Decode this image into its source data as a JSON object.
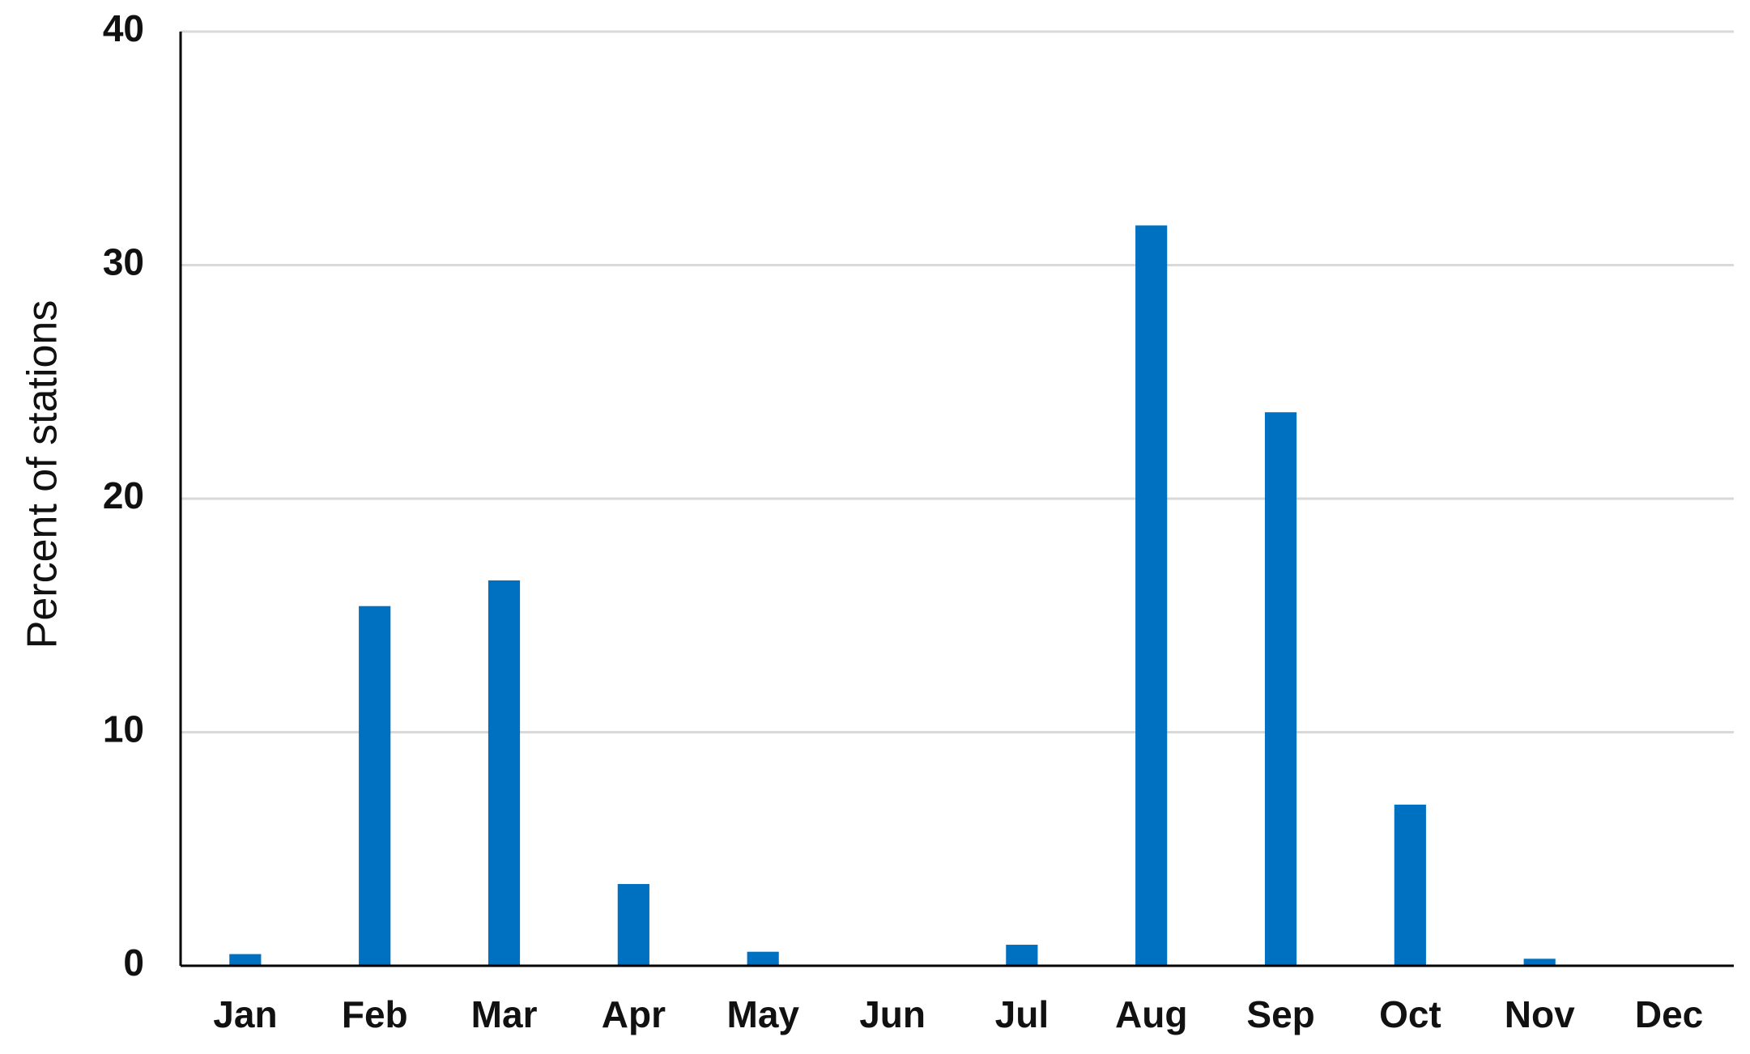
{
  "chart_data": {
    "type": "bar",
    "y_label": "Percent of  stations",
    "categories": [
      "Jan",
      "Feb",
      "Mar",
      "Apr",
      "May",
      "Jun",
      "Jul",
      "Aug",
      "Sep",
      "Oct",
      "Nov",
      "Dec"
    ],
    "values": [
      0.5,
      15.4,
      16.5,
      3.5,
      0.6,
      0,
      0.9,
      31.7,
      23.7,
      6.9,
      0.3,
      0
    ],
    "color": "#0070c0",
    "ylim": [
      0,
      40
    ],
    "yticks": [
      0,
      10,
      20,
      30,
      40
    ],
    "grid": true
  }
}
